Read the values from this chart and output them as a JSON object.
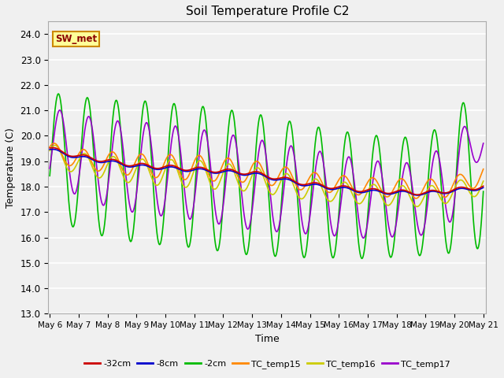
{
  "title": "Soil Temperature Profile C2",
  "xlabel": "Time",
  "ylabel": "Temperature (C)",
  "ylim": [
    13.0,
    24.5
  ],
  "yticks": [
    13.0,
    14.0,
    15.0,
    16.0,
    17.0,
    18.0,
    19.0,
    20.0,
    21.0,
    22.0,
    23.0,
    24.0
  ],
  "annotation_label": "SW_met",
  "colors": {
    "-32cm": "#cc0000",
    "-8cm": "#0000cc",
    "-2cm": "#00bb00",
    "TC_temp15": "#ff8800",
    "TC_temp16": "#cccc00",
    "TC_temp17": "#9900cc"
  },
  "xtick_labels": [
    "May 6",
    "May 7",
    "May 8",
    "May 9",
    "May 10",
    "May 11",
    "May 12",
    "May 13",
    "May 14",
    "May 15",
    "May 16",
    "May 17",
    "May 18",
    "May 19",
    "May 20",
    "May 21"
  ],
  "background_color": "#f0f0f0",
  "grid_color": "#ffffff"
}
